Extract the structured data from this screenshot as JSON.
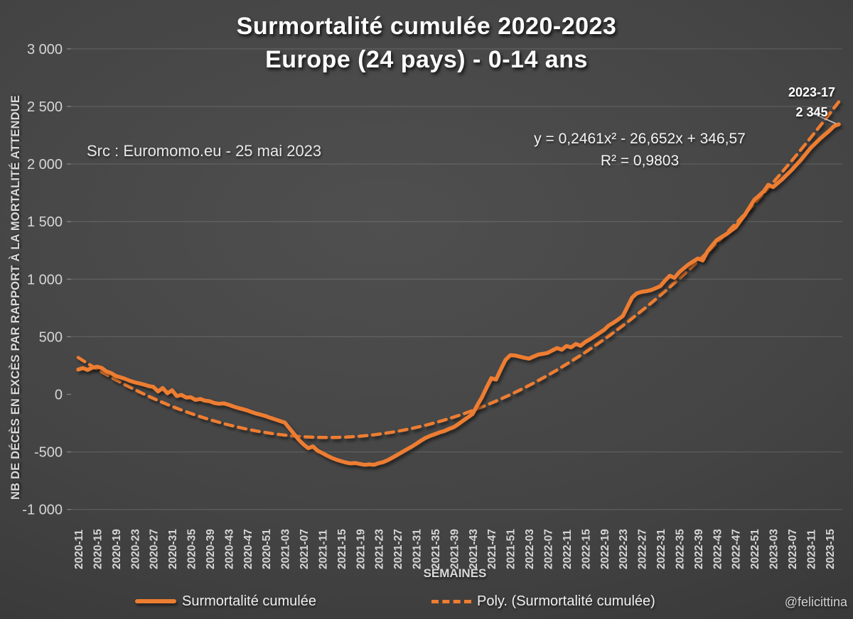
{
  "title": {
    "line1": "Surmortalité cumulée 2020-2023",
    "line2": "Europe (24 pays) - 0-14 ans"
  },
  "source_note": "Src : Euromomo.eu  - 25 mai 2023",
  "equation": {
    "line1": "y = 0,2461x² - 26,652x + 346,57",
    "line2": "R² = 0,9803"
  },
  "end_label": {
    "week": "2023-17",
    "value": "2 345"
  },
  "watermark": "@felicittina",
  "axes": {
    "y_title": "NB DE DÉCÈS EN EXCÈS PAR RAPPORT À LA MORTALITÉ ATTENDUE",
    "x_title": "SEMAINES",
    "y_ticks": [
      {
        "label": "3 000",
        "value": 3000
      },
      {
        "label": "2 500",
        "value": 2500
      },
      {
        "label": "2 000",
        "value": 2000
      },
      {
        "label": "1 500",
        "value": 1500
      },
      {
        "label": "1 000",
        "value": 1000
      },
      {
        "label": "500",
        "value": 500
      },
      {
        "label": "0",
        "value": 0
      },
      {
        "label": "-500",
        "value": -500
      },
      {
        "label": "-1 000",
        "value": -1000
      }
    ],
    "x_ticks": [
      "2020-11",
      "2020-15",
      "2020-19",
      "2020-23",
      "2020-27",
      "2020-31",
      "2020-35",
      "2020-39",
      "2020-43",
      "2020-47",
      "2020-51",
      "2021-03",
      "2021-07",
      "2021-11",
      "2021-15",
      "2021-19",
      "2021-23",
      "2021-27",
      "2021-31",
      "2021-35",
      "2021-39",
      "2021-43",
      "2021-47",
      "2021-51",
      "2022-03",
      "2022-07",
      "2022-11",
      "2022-15",
      "2022-19",
      "2022-23",
      "2022-27",
      "2022-31",
      "2022-35",
      "2022-39",
      "2022-43",
      "2022-47",
      "2022-51",
      "2023-03",
      "2023-07",
      "2023-11",
      "2023-15"
    ]
  },
  "legend": [
    {
      "label": "Surmortalité cumulée",
      "style": "solid"
    },
    {
      "label": "Poly. (Surmortalité cumulée)",
      "style": "dashed"
    }
  ],
  "colors": {
    "line": "#ED7D31",
    "grid": "rgba(255,255,255,0.13)",
    "zero_line": "#f2f2f2",
    "tick_text": "#d6d6d6",
    "title_text": "#ffffff",
    "leader_line": "#c8c8c8"
  },
  "chart_data": {
    "type": "line",
    "title": "Surmortalité cumulée 2020-2023 Europe (24 pays) - 0-14 ans",
    "xlabel": "SEMAINES",
    "ylabel": "NB DE DÉCÈS EN EXCÈS PAR RAPPORT À LA MORTALITÉ ATTENDUE",
    "ylim": [
      -1000,
      3000
    ],
    "x_axis": {
      "first_week": "2020-11",
      "last_week": "2023-17",
      "weeks_per_year": 52,
      "tick_step_weeks": 4
    },
    "legend_position": "bottom",
    "grid": "horizontal",
    "series": [
      {
        "name": "Surmortalité cumulée",
        "style": "solid",
        "points": [
          [
            "2020-11",
            215
          ],
          [
            "2020-12",
            228
          ],
          [
            "2020-13",
            212
          ],
          [
            "2020-14",
            232
          ],
          [
            "2020-15",
            240
          ],
          [
            "2020-16",
            230
          ],
          [
            "2020-17",
            200
          ],
          [
            "2020-18",
            185
          ],
          [
            "2020-19",
            160
          ],
          [
            "2020-20",
            148
          ],
          [
            "2020-21",
            135
          ],
          [
            "2020-22",
            118
          ],
          [
            "2020-23",
            105
          ],
          [
            "2020-24",
            95
          ],
          [
            "2020-25",
            85
          ],
          [
            "2020-26",
            72
          ],
          [
            "2020-27",
            65
          ],
          [
            "2020-28",
            25
          ],
          [
            "2020-29",
            55
          ],
          [
            "2020-30",
            10
          ],
          [
            "2020-31",
            35
          ],
          [
            "2020-32",
            -15
          ],
          [
            "2020-33",
            -5
          ],
          [
            "2020-34",
            -28
          ],
          [
            "2020-35",
            -25
          ],
          [
            "2020-36",
            -48
          ],
          [
            "2020-37",
            -40
          ],
          [
            "2020-38",
            -55
          ],
          [
            "2020-39",
            -60
          ],
          [
            "2020-40",
            -75
          ],
          [
            "2020-41",
            -82
          ],
          [
            "2020-42",
            -78
          ],
          [
            "2020-43",
            -90
          ],
          [
            "2020-44",
            -105
          ],
          [
            "2020-45",
            -118
          ],
          [
            "2020-46",
            -128
          ],
          [
            "2020-47",
            -140
          ],
          [
            "2020-48",
            -155
          ],
          [
            "2020-49",
            -168
          ],
          [
            "2020-50",
            -178
          ],
          [
            "2020-51",
            -190
          ],
          [
            "2020-52",
            -205
          ],
          [
            "2021-01",
            -218
          ],
          [
            "2021-02",
            -232
          ],
          [
            "2021-03",
            -245
          ],
          [
            "2021-04",
            -295
          ],
          [
            "2021-05",
            -345
          ],
          [
            "2021-06",
            -395
          ],
          [
            "2021-07",
            -435
          ],
          [
            "2021-08",
            -468
          ],
          [
            "2021-09",
            -452
          ],
          [
            "2021-10",
            -490
          ],
          [
            "2021-11",
            -510
          ],
          [
            "2021-12",
            -532
          ],
          [
            "2021-13",
            -552
          ],
          [
            "2021-14",
            -568
          ],
          [
            "2021-15",
            -580
          ],
          [
            "2021-16",
            -592
          ],
          [
            "2021-17",
            -600
          ],
          [
            "2021-18",
            -596
          ],
          [
            "2021-19",
            -605
          ],
          [
            "2021-20",
            -612
          ],
          [
            "2021-21",
            -608
          ],
          [
            "2021-22",
            -612
          ],
          [
            "2021-23",
            -598
          ],
          [
            "2021-24",
            -588
          ],
          [
            "2021-25",
            -570
          ],
          [
            "2021-26",
            -548
          ],
          [
            "2021-27",
            -525
          ],
          [
            "2021-28",
            -502
          ],
          [
            "2021-29",
            -478
          ],
          [
            "2021-30",
            -455
          ],
          [
            "2021-31",
            -430
          ],
          [
            "2021-32",
            -402
          ],
          [
            "2021-33",
            -378
          ],
          [
            "2021-34",
            -360
          ],
          [
            "2021-35",
            -345
          ],
          [
            "2021-36",
            -330
          ],
          [
            "2021-37",
            -318
          ],
          [
            "2021-38",
            -300
          ],
          [
            "2021-39",
            -285
          ],
          [
            "2021-40",
            -258
          ],
          [
            "2021-41",
            -228
          ],
          [
            "2021-42",
            -200
          ],
          [
            "2021-43",
            -170
          ],
          [
            "2021-44",
            -95
          ],
          [
            "2021-45",
            -25
          ],
          [
            "2021-46",
            60
          ],
          [
            "2021-47",
            140
          ],
          [
            "2021-48",
            128
          ],
          [
            "2021-49",
            215
          ],
          [
            "2021-50",
            298
          ],
          [
            "2021-51",
            340
          ],
          [
            "2021-52",
            338
          ],
          [
            "2022-01",
            328
          ],
          [
            "2022-02",
            318
          ],
          [
            "2022-03",
            310
          ],
          [
            "2022-04",
            328
          ],
          [
            "2022-05",
            345
          ],
          [
            "2022-06",
            352
          ],
          [
            "2022-07",
            360
          ],
          [
            "2022-08",
            382
          ],
          [
            "2022-09",
            402
          ],
          [
            "2022-10",
            388
          ],
          [
            "2022-11",
            420
          ],
          [
            "2022-12",
            408
          ],
          [
            "2022-13",
            438
          ],
          [
            "2022-14",
            422
          ],
          [
            "2022-15",
            455
          ],
          [
            "2022-16",
            478
          ],
          [
            "2022-17",
            505
          ],
          [
            "2022-18",
            532
          ],
          [
            "2022-19",
            560
          ],
          [
            "2022-20",
            598
          ],
          [
            "2022-21",
            622
          ],
          [
            "2022-22",
            650
          ],
          [
            "2022-23",
            680
          ],
          [
            "2022-24",
            762
          ],
          [
            "2022-25",
            842
          ],
          [
            "2022-26",
            878
          ],
          [
            "2022-27",
            890
          ],
          [
            "2022-28",
            896
          ],
          [
            "2022-29",
            905
          ],
          [
            "2022-30",
            922
          ],
          [
            "2022-31",
            940
          ],
          [
            "2022-32",
            988
          ],
          [
            "2022-33",
            1030
          ],
          [
            "2022-34",
            1012
          ],
          [
            "2022-35",
            1060
          ],
          [
            "2022-36",
            1095
          ],
          [
            "2022-37",
            1128
          ],
          [
            "2022-38",
            1155
          ],
          [
            "2022-39",
            1180
          ],
          [
            "2022-40",
            1162
          ],
          [
            "2022-41",
            1240
          ],
          [
            "2022-42",
            1292
          ],
          [
            "2022-43",
            1340
          ],
          [
            "2022-44",
            1365
          ],
          [
            "2022-45",
            1390
          ],
          [
            "2022-46",
            1420
          ],
          [
            "2022-47",
            1450
          ],
          [
            "2022-48",
            1505
          ],
          [
            "2022-49",
            1560
          ],
          [
            "2022-50",
            1625
          ],
          [
            "2022-51",
            1690
          ],
          [
            "2022-52",
            1725
          ],
          [
            "2023-01",
            1762
          ],
          [
            "2023-02",
            1820
          ],
          [
            "2023-03",
            1800
          ],
          [
            "2023-04",
            1835
          ],
          [
            "2023-05",
            1870
          ],
          [
            "2023-06",
            1910
          ],
          [
            "2023-07",
            1950
          ],
          [
            "2023-08",
            1995
          ],
          [
            "2023-09",
            2040
          ],
          [
            "2023-10",
            2090
          ],
          [
            "2023-11",
            2140
          ],
          [
            "2023-12",
            2180
          ],
          [
            "2023-13",
            2220
          ],
          [
            "2023-14",
            2255
          ],
          [
            "2023-15",
            2290
          ],
          [
            "2023-16",
            2330
          ],
          [
            "2023-17",
            2345
          ]
        ],
        "last_point_label": {
          "week": "2023-17",
          "value": 2345
        }
      },
      {
        "name": "Poly. (Surmortalité cumulée)",
        "style": "dashed",
        "trendline": {
          "type": "polynomial",
          "a": 0.2461,
          "b": -26.652,
          "c": 346.57,
          "r2": 0.9803
        }
      }
    ]
  }
}
